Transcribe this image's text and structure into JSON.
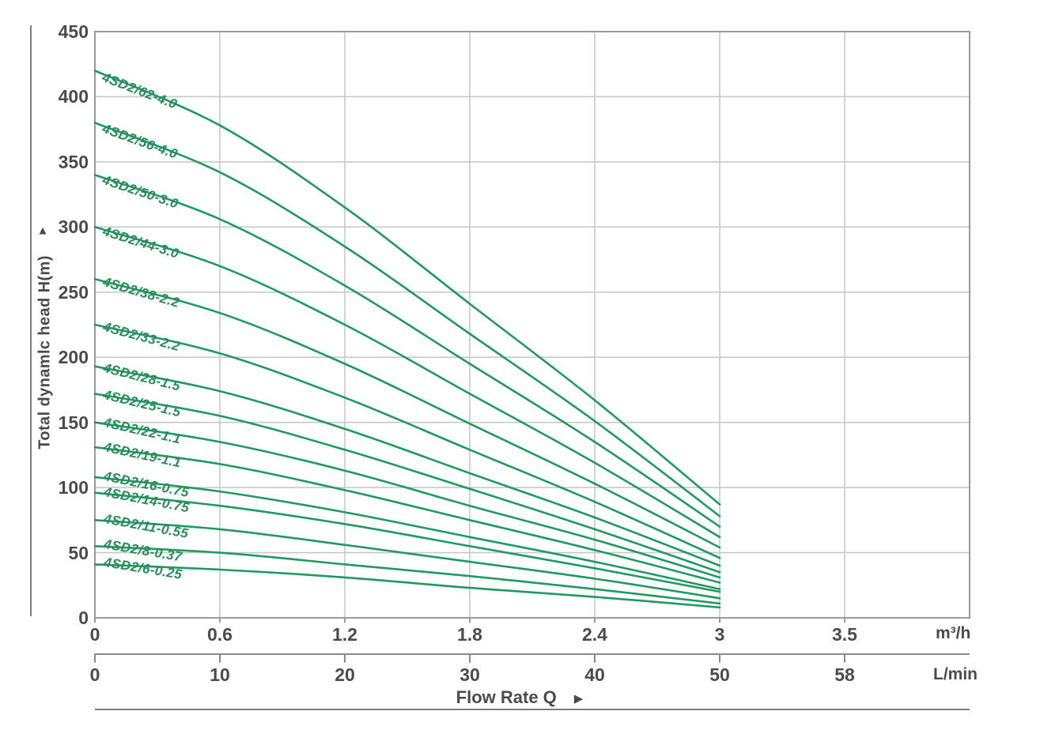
{
  "chart_data": {
    "type": "line",
    "xlabel": "Flow Rate Q",
    "ylabel": "Total dynamlc head H(m)",
    "ylim": [
      0,
      450
    ],
    "grid": true,
    "legend_position": "labels-on-curves",
    "x": [
      0,
      0.6,
      1.2,
      1.8,
      2.4,
      3.0
    ],
    "x_ticks_m3h": [
      "0",
      "0.6",
      "1.2",
      "1.8",
      "2.4",
      "3",
      "3.5"
    ],
    "x_ticks_lmin": [
      "0",
      "10",
      "20",
      "30",
      "40",
      "50",
      "58"
    ],
    "y_ticks": [
      450,
      400,
      350,
      300,
      250,
      200,
      150,
      100,
      50,
      0
    ],
    "series": [
      {
        "name": "4SD2/62-4.0",
        "values": [
          420,
          378,
          315,
          241,
          167,
          87
        ]
      },
      {
        "name": "4SD2/56-4.0",
        "values": [
          380,
          342,
          285,
          218,
          151,
          78
        ]
      },
      {
        "name": "4SD2/50-3.0",
        "values": [
          340,
          306,
          255,
          195,
          135,
          70
        ]
      },
      {
        "name": "4SD2/44-3.0",
        "values": [
          300,
          270,
          225,
          172,
          119,
          62
        ]
      },
      {
        "name": "4SD2/38-2.2",
        "values": [
          260,
          234,
          195,
          149,
          103,
          54
        ]
      },
      {
        "name": "4SD2/33-2.2",
        "values": [
          225,
          203,
          169,
          129,
          89,
          46
        ]
      },
      {
        "name": "4SD2/28-1.5",
        "values": [
          193,
          174,
          145,
          111,
          77,
          40
        ]
      },
      {
        "name": "4SD2/25-1.5",
        "values": [
          172,
          155,
          129,
          99,
          68,
          35
        ]
      },
      {
        "name": "4SD2/22-1.1",
        "values": [
          150,
          135,
          113,
          86,
          60,
          31
        ]
      },
      {
        "name": "4SD2/19-1.1",
        "values": [
          131,
          118,
          98,
          75,
          52,
          27
        ]
      },
      {
        "name": "4SD2/16-0.75",
        "values": [
          108,
          97,
          81,
          62,
          43,
          22
        ]
      },
      {
        "name": "4SD2/14-0.75",
        "values": [
          96,
          86,
          72,
          55,
          38,
          20
        ]
      },
      {
        "name": "4SD2/11-0.55",
        "values": [
          75,
          68,
          56,
          43,
          30,
          15
        ]
      },
      {
        "name": "4SD2/8-0.37",
        "values": [
          55,
          50,
          41,
          32,
          22,
          11
        ]
      },
      {
        "name": "4SD2/6-0.25",
        "values": [
          41,
          37,
          31,
          23,
          16,
          8
        ]
      }
    ]
  },
  "axis": {
    "x_unit_primary": "m³/h",
    "x_unit_secondary": "L/min",
    "head_arrow": "▲",
    "flow_arrow": "▶"
  },
  "colors": {
    "curve": "#1f9a63",
    "curve_label": "#288c5a",
    "grid": "#c9c9c9",
    "plot_border": "#9a9a9a",
    "axis_line": "#8a8a8a",
    "rule": "#7c7c7c",
    "axis_text": "#4b4b4b"
  }
}
